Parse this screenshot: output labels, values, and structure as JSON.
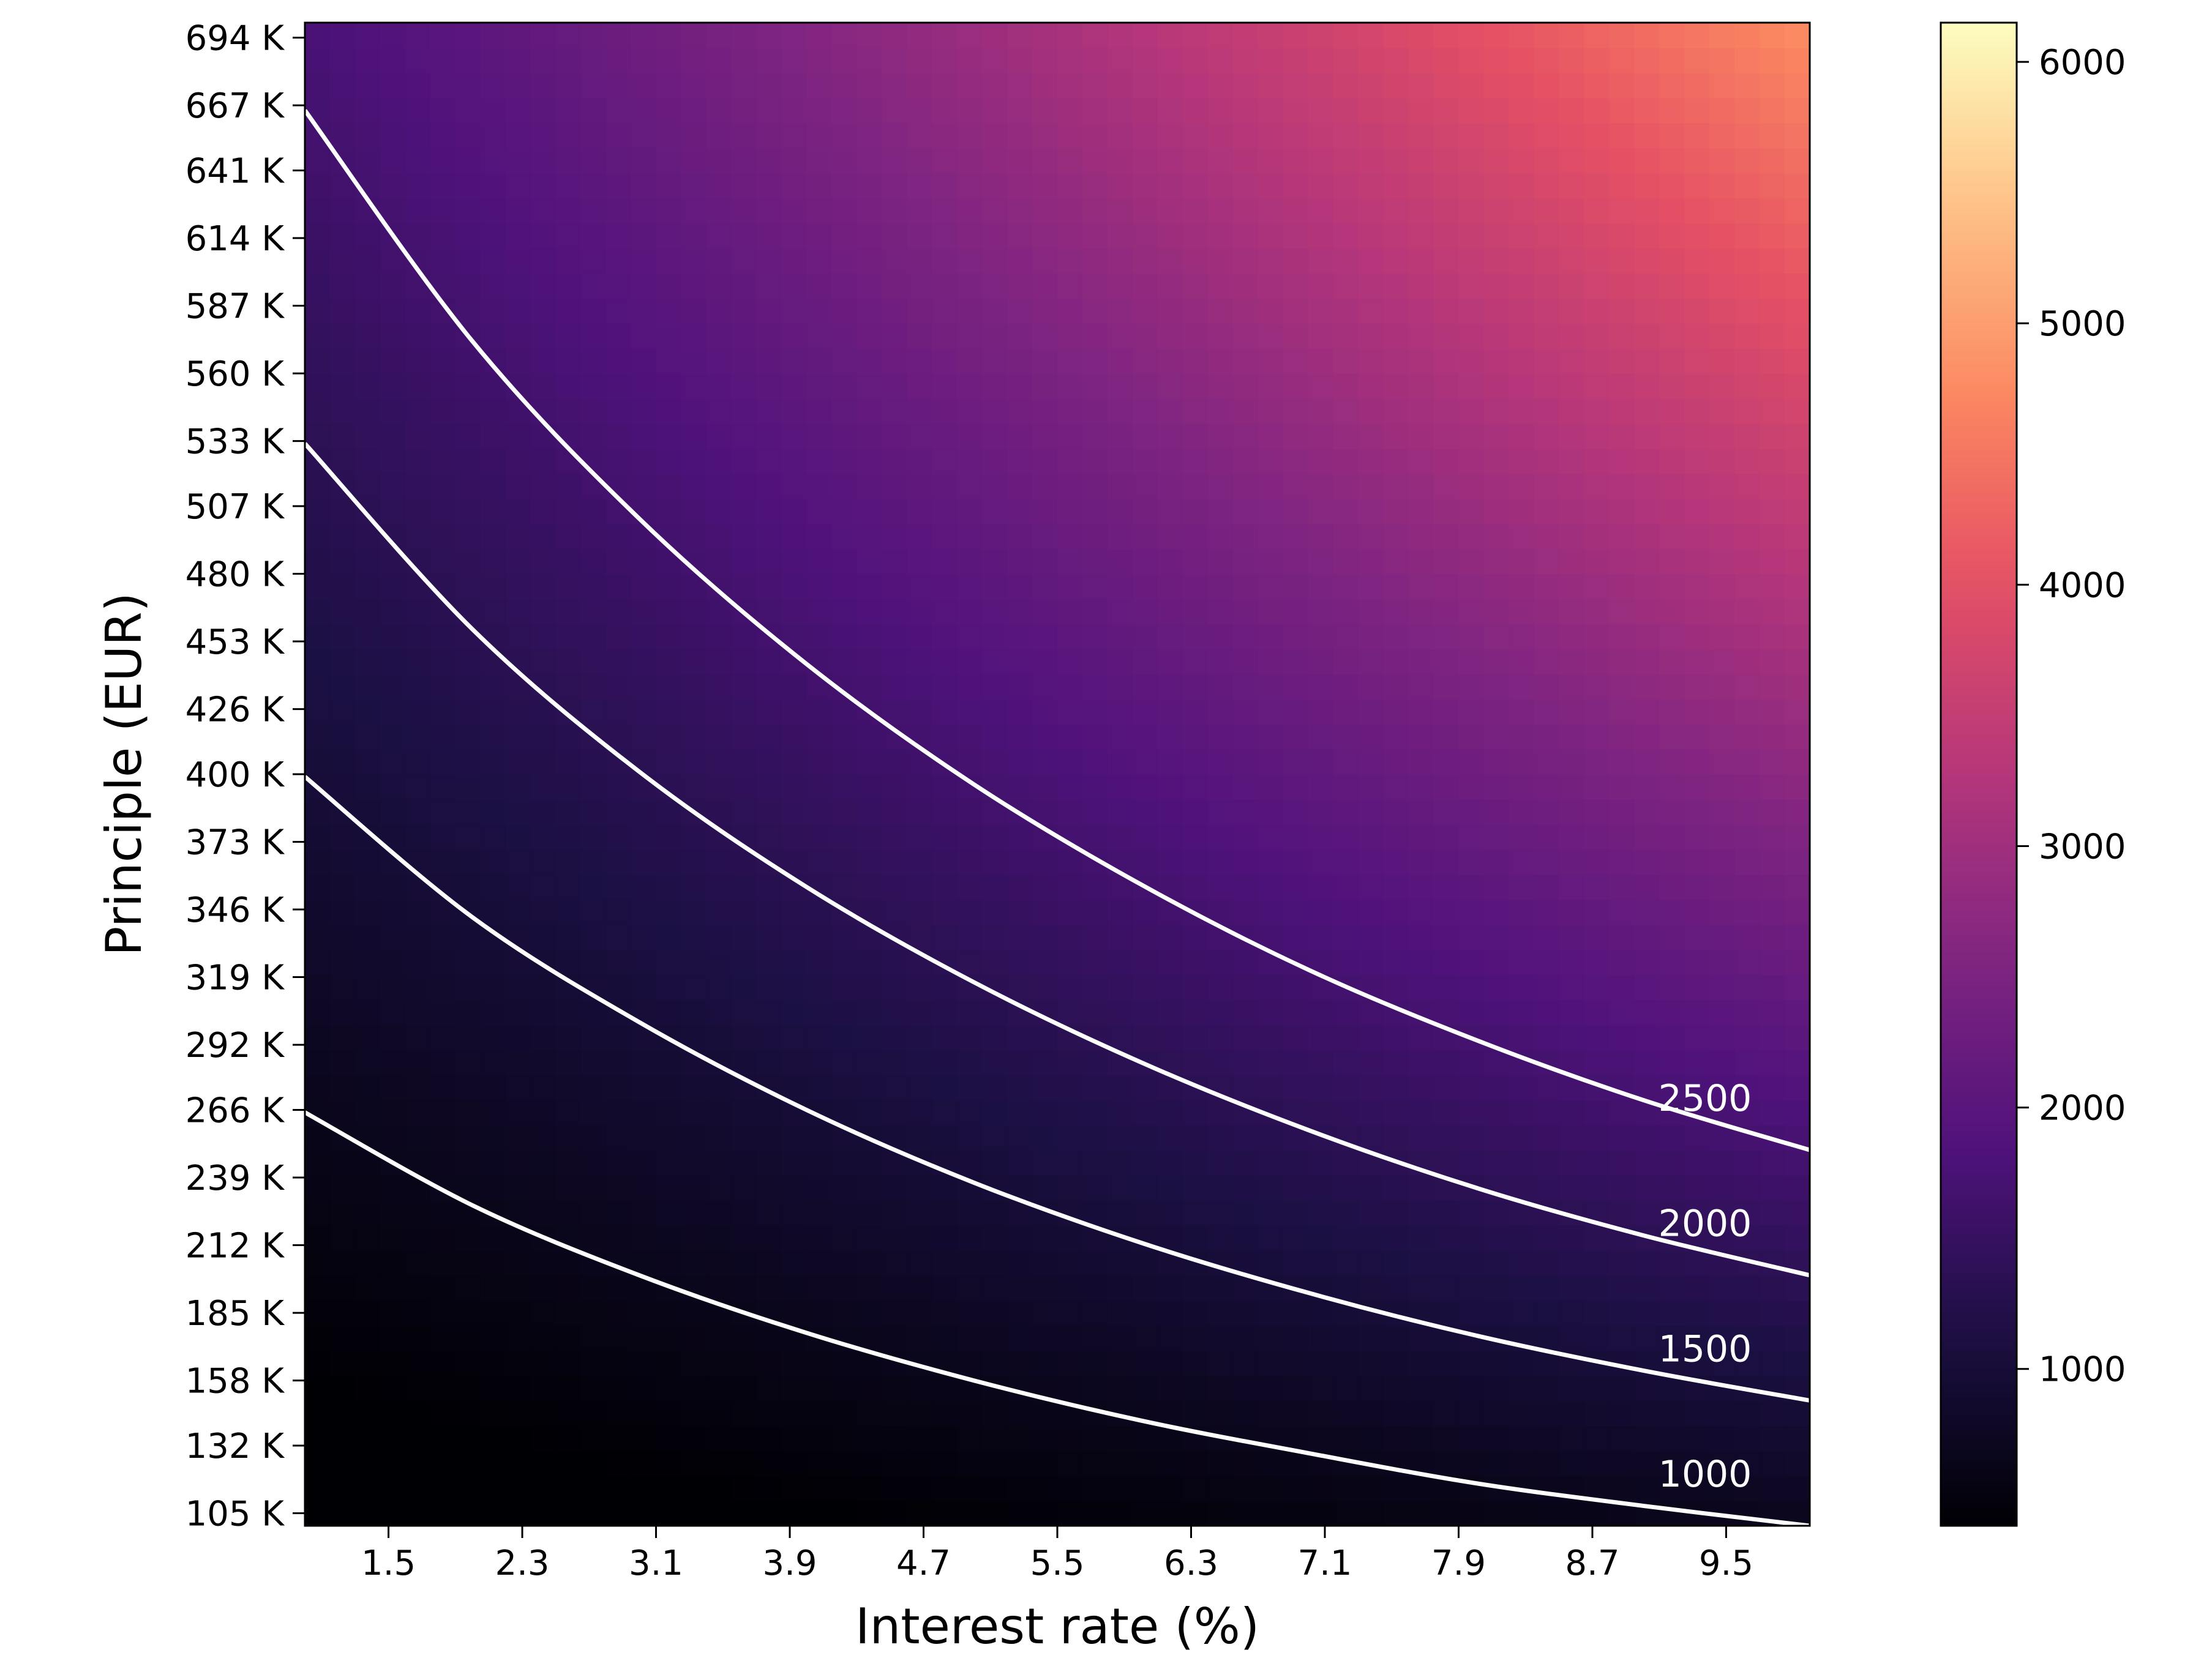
{
  "chart_data": {
    "type": "heatmap",
    "xlabel": "Interest rate (%)",
    "ylabel": "Principle (EUR)",
    "x_range": [
      1.0,
      10.0
    ],
    "y_range": [
      100000,
      700000
    ],
    "x_ticks": [
      1.5,
      2.3,
      3.1,
      3.9,
      4.7,
      5.5,
      6.3,
      7.1,
      7.9,
      8.7,
      9.5
    ],
    "x_tick_labels": [
      "1.5",
      "2.3",
      "3.1",
      "3.9",
      "4.7",
      "5.5",
      "6.3",
      "7.1",
      "7.9",
      "8.7",
      "9.5"
    ],
    "y_ticks": [
      105000,
      132000,
      158000,
      185000,
      212000,
      239000,
      266000,
      292000,
      319000,
      346000,
      373000,
      400000,
      426000,
      453000,
      480000,
      507000,
      533000,
      560000,
      587000,
      614000,
      641000,
      667000,
      694000
    ],
    "y_tick_labels": [
      "105 K",
      "132 K",
      "158 K",
      "185 K",
      "212 K",
      "239 K",
      "266 K",
      "292 K",
      "319 K",
      "346 K",
      "373 K",
      "400 K",
      "426 K",
      "453 K",
      "480 K",
      "507 K",
      "533 K",
      "560 K",
      "587 K",
      "614 K",
      "641 K",
      "667 K",
      "694 K"
    ],
    "colormap": "magma",
    "colorbar": {
      "range": [
        400,
        6150
      ],
      "ticks": [
        1000,
        2000,
        3000,
        4000,
        5000,
        6000
      ],
      "tick_labels": [
        "1000",
        "2000",
        "3000",
        "4000",
        "5000",
        "6000"
      ]
    },
    "contours": [
      {
        "level": 1000,
        "label": "1000",
        "points": [
          [
            1.0,
            265000
          ],
          [
            2.0,
            228000
          ],
          [
            3.0,
            200000
          ],
          [
            4.0,
            177000
          ],
          [
            5.0,
            158000
          ],
          [
            6.0,
            142000
          ],
          [
            7.0,
            129000
          ],
          [
            8.0,
            117000
          ],
          [
            9.0,
            108000
          ],
          [
            10.0,
            100000
          ]
        ]
      },
      {
        "level": 1500,
        "label": "1500",
        "points": [
          [
            1.0,
            399000
          ],
          [
            2.0,
            343000
          ],
          [
            3.0,
            301000
          ],
          [
            4.0,
            266000
          ],
          [
            5.0,
            237000
          ],
          [
            6.0,
            213000
          ],
          [
            7.0,
            193000
          ],
          [
            8.0,
            176000
          ],
          [
            9.0,
            162000
          ],
          [
            10.0,
            150000
          ]
        ]
      },
      {
        "level": 2000,
        "label": "2000",
        "points": [
          [
            1.0,
            532000
          ],
          [
            2.0,
            458000
          ],
          [
            3.0,
            401000
          ],
          [
            4.0,
            355000
          ],
          [
            5.0,
            317000
          ],
          [
            6.0,
            285000
          ],
          [
            7.0,
            258000
          ],
          [
            8.0,
            235000
          ],
          [
            9.0,
            216000
          ],
          [
            10.0,
            200000
          ]
        ]
      },
      {
        "level": 2500,
        "label": "2500",
        "points": [
          [
            1.0,
            665000
          ],
          [
            2.0,
            573000
          ],
          [
            3.0,
            502000
          ],
          [
            4.0,
            444000
          ],
          [
            5.0,
            396000
          ],
          [
            6.0,
            356000
          ],
          [
            7.0,
            322000
          ],
          [
            8.0,
            294000
          ],
          [
            9.0,
            270000
          ],
          [
            10.0,
            250000
          ]
        ]
      }
    ],
    "grid": false,
    "legend": "colorbar-right"
  },
  "colors": {
    "contour_line": "#ffffff",
    "axis": "#000000",
    "background": "#ffffff"
  }
}
